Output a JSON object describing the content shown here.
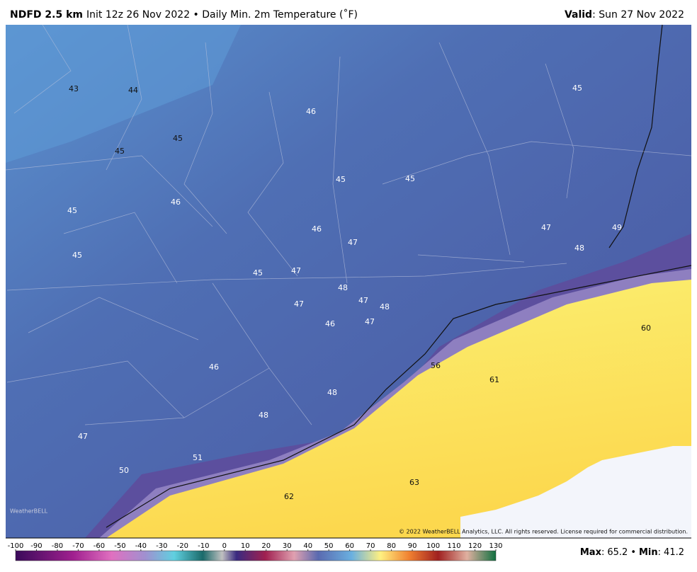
{
  "header": {
    "product": "NDFD 2.5 km",
    "description": "Init 12z 26 Nov 2022 • Daily Min. 2m Temperature (˚F)",
    "valid_label": "Valid",
    "valid_date": ": Sun 27 Nov 2022"
  },
  "map_labels": [
    43,
    44,
    45,
    45,
    46,
    45,
    45,
    45,
    45,
    46,
    46,
    47,
    47,
    49,
    48,
    45,
    45,
    47,
    48,
    47,
    48,
    47,
    46,
    47,
    60,
    56,
    61,
    46,
    48,
    48,
    47,
    51,
    50,
    63,
    62
  ],
  "copyright": "© 2022 WeatherBELL Analytics, LLC. All rights reserved. License required for commercial distribution.",
  "logo": "WeatherBELL",
  "colorbar": {
    "ticks": [
      -100,
      -90,
      -80,
      -70,
      -60,
      -50,
      -40,
      -30,
      -20,
      -10,
      0,
      10,
      20,
      30,
      40,
      50,
      60,
      70,
      80,
      90,
      100,
      110,
      120,
      130
    ]
  },
  "stats": {
    "max_label": "Max",
    "max_value": 65.2,
    "min_label": "Min",
    "min_value": 41.2,
    "delimiter": ":",
    "bullet": "•"
  }
}
